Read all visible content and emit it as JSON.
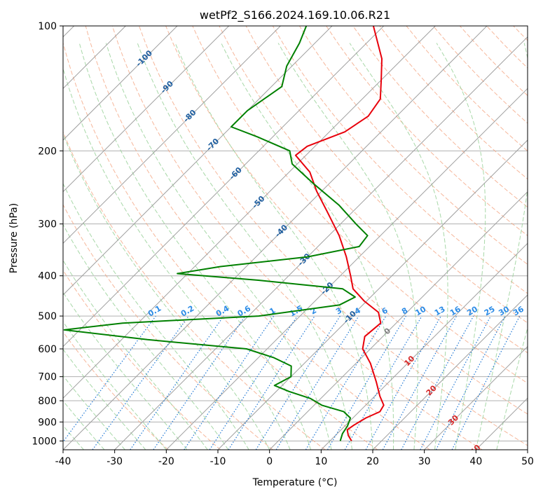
{
  "chart_data": {
    "type": "line",
    "title": "wetPf2_S166.2024.169.10.06.R21",
    "xlabel": "Temperature (°C)",
    "ylabel": "Pressure (hPa)",
    "xlim": [
      -40,
      50
    ],
    "ylim": [
      1050,
      100
    ],
    "y_scale": "log",
    "grid": true,
    "x_ticks": [
      -40,
      -30,
      -20,
      -10,
      0,
      10,
      20,
      30,
      40,
      50
    ],
    "y_ticks": [
      100,
      200,
      300,
      400,
      500,
      600,
      700,
      800,
      900,
      1000
    ],
    "skew": 45,
    "isotherm_labels": [
      -100,
      -90,
      -80,
      -70,
      -60,
      -50,
      -40,
      -30,
      -20,
      -10,
      0,
      10,
      20,
      30,
      40
    ],
    "mixing_ratio_labels": [
      "0.1",
      "0.2",
      "0.4",
      "0.6",
      "1",
      "1.5",
      "2",
      "3",
      "4",
      "6",
      "8",
      "10",
      "13",
      "16",
      "20",
      "25",
      "30",
      "36"
    ],
    "colors": {
      "temperature": "#e8000b",
      "dewpoint": "#008000",
      "isotherm": "#a0a0a0",
      "grid": "#b0b0b0",
      "dry_adiabat": "#f4a582",
      "moist_adiabat": "#9fd49f",
      "mixing_ratio": "#1f77d4",
      "isotherm_label_cold": "#1f5fa0",
      "isotherm_label_warm": "#d62728"
    },
    "series": [
      {
        "name": "temperature",
        "points": [
          {
            "p": 1000,
            "t": 14.2
          },
          {
            "p": 970,
            "t": 12.5
          },
          {
            "p": 940,
            "t": 11.2
          },
          {
            "p": 915,
            "t": 11.6
          },
          {
            "p": 880,
            "t": 12.5
          },
          {
            "p": 850,
            "t": 14.0
          },
          {
            "p": 820,
            "t": 13.5
          },
          {
            "p": 780,
            "t": 11.0
          },
          {
            "p": 720,
            "t": 7.5
          },
          {
            "p": 650,
            "t": 2.8
          },
          {
            "p": 600,
            "t": -1.5
          },
          {
            "p": 560,
            "t": -3.5
          },
          {
            "p": 520,
            "t": -3.0
          },
          {
            "p": 490,
            "t": -5.5
          },
          {
            "p": 460,
            "t": -10.5
          },
          {
            "p": 430,
            "t": -15.0
          },
          {
            "p": 400,
            "t": -18.0
          },
          {
            "p": 360,
            "t": -22.5
          },
          {
            "p": 320,
            "t": -28.0
          },
          {
            "p": 280,
            "t": -35.0
          },
          {
            "p": 250,
            "t": -41.0
          },
          {
            "p": 225,
            "t": -46.0
          },
          {
            "p": 205,
            "t": -52.0
          },
          {
            "p": 195,
            "t": -51.5
          },
          {
            "p": 180,
            "t": -47.0
          },
          {
            "p": 165,
            "t": -45.5
          },
          {
            "p": 150,
            "t": -46.5
          },
          {
            "p": 135,
            "t": -50.0
          },
          {
            "p": 120,
            "t": -54.0
          },
          {
            "p": 100,
            "t": -62.0
          }
        ]
      },
      {
        "name": "dewpoint",
        "points": [
          {
            "p": 1000,
            "t": 12.0
          },
          {
            "p": 960,
            "t": 11.0
          },
          {
            "p": 920,
            "t": 10.5
          },
          {
            "p": 880,
            "t": 9.5
          },
          {
            "p": 850,
            "t": 7.0
          },
          {
            "p": 820,
            "t": 1.5
          },
          {
            "p": 790,
            "t": -2.0
          },
          {
            "p": 760,
            "t": -7.5
          },
          {
            "p": 735,
            "t": -11.5
          },
          {
            "p": 700,
            "t": -10.0
          },
          {
            "p": 660,
            "t": -12.0
          },
          {
            "p": 630,
            "t": -17.0
          },
          {
            "p": 600,
            "t": -24.0
          },
          {
            "p": 570,
            "t": -45.0
          },
          {
            "p": 540,
            "t": -63.0
          },
          {
            "p": 520,
            "t": -53.0
          },
          {
            "p": 500,
            "t": -28.0
          },
          {
            "p": 470,
            "t": -14.5
          },
          {
            "p": 450,
            "t": -13.0
          },
          {
            "p": 430,
            "t": -17.0
          },
          {
            "p": 410,
            "t": -35.0
          },
          {
            "p": 395,
            "t": -52.0
          },
          {
            "p": 380,
            "t": -45.0
          },
          {
            "p": 360,
            "t": -30.0
          },
          {
            "p": 340,
            "t": -22.0
          },
          {
            "p": 320,
            "t": -22.5
          },
          {
            "p": 300,
            "t": -27.0
          },
          {
            "p": 270,
            "t": -34.0
          },
          {
            "p": 240,
            "t": -43.0
          },
          {
            "p": 215,
            "t": -51.0
          },
          {
            "p": 200,
            "t": -54.0
          },
          {
            "p": 185,
            "t": -63.0
          },
          {
            "p": 175,
            "t": -70.0
          },
          {
            "p": 160,
            "t": -70.0
          },
          {
            "p": 140,
            "t": -68.0
          },
          {
            "p": 125,
            "t": -71.0
          },
          {
            "p": 110,
            "t": -73.0
          },
          {
            "p": 100,
            "t": -75.0
          }
        ]
      }
    ]
  }
}
